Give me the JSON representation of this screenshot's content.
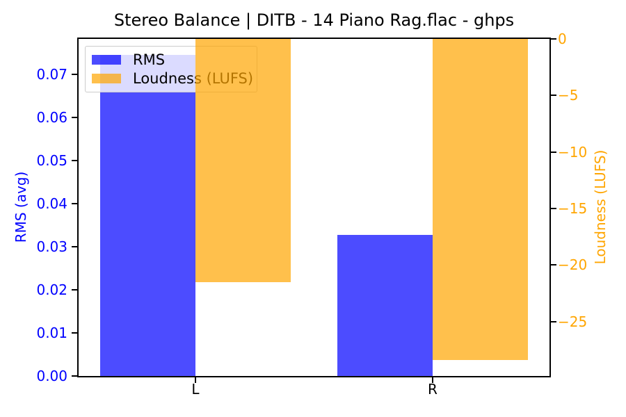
{
  "chart_data": {
    "type": "bar",
    "title": "Stereo Balance | DITB - 14 Piano Rag.flac - ghps",
    "categories": [
      "L",
      "R"
    ],
    "series": [
      {
        "name": "RMS",
        "axis": "left",
        "values": [
          0.0745,
          0.0328
        ],
        "fill": "rgba(0,0,255,0.7)",
        "color": "#0000ff"
      },
      {
        "name": "Loudness (LUFS)",
        "axis": "right",
        "values": [
          -21.5,
          -28.4
        ],
        "fill": "rgba(255,165,0,0.7)",
        "color": "#ffa500"
      }
    ],
    "left_axis": {
      "label": "RMS (avg)",
      "color": "#0000ff",
      "ylim": [
        0,
        0.078225
      ],
      "ticks": [
        {
          "v": 0.0,
          "label": "0.00"
        },
        {
          "v": 0.01,
          "label": "0.01"
        },
        {
          "v": 0.02,
          "label": "0.02"
        },
        {
          "v": 0.03,
          "label": "0.03"
        },
        {
          "v": 0.04,
          "label": "0.04"
        },
        {
          "v": 0.05,
          "label": "0.05"
        },
        {
          "v": 0.06,
          "label": "0.06"
        },
        {
          "v": 0.07,
          "label": "0.07"
        }
      ]
    },
    "right_axis": {
      "label": "Loudness (LUFS)",
      "color": "#ffa500",
      "ylim": [
        -29.82,
        0
      ],
      "ticks": [
        {
          "v": 0,
          "label": "0"
        },
        {
          "v": -5,
          "label": "−5"
        },
        {
          "v": -10,
          "label": "−10"
        },
        {
          "v": -15,
          "label": "−15"
        },
        {
          "v": -20,
          "label": "−20"
        },
        {
          "v": -25,
          "label": "−25"
        }
      ]
    },
    "legend": {
      "position": "upper-left",
      "entries": [
        "RMS",
        "Loudness (LUFS)"
      ]
    },
    "grid": false,
    "background": "#ffffff"
  }
}
